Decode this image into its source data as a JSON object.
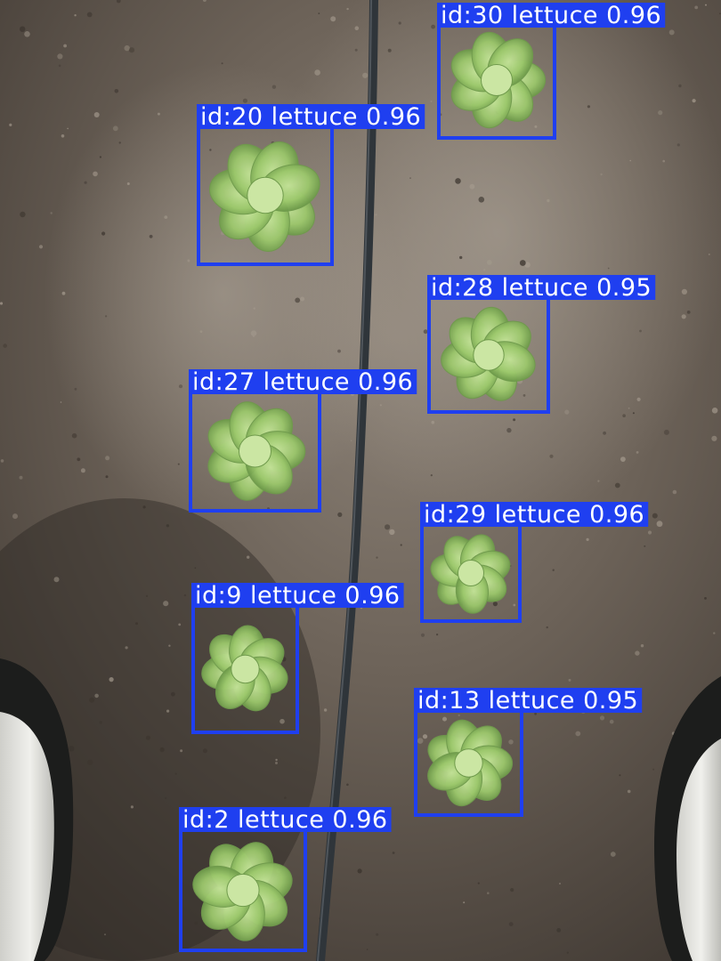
{
  "detections": [
    {
      "id_text": "id:30",
      "class_label": "lettuce",
      "score": "0.96",
      "label": "id:30 lettuce 0.96"
    },
    {
      "id_text": "id:20",
      "class_label": "lettuce",
      "score": "0.96",
      "label": "id:20 lettuce 0.96"
    },
    {
      "id_text": "id:28",
      "class_label": "lettuce",
      "score": "0.95",
      "label": "id:28 lettuce 0.95"
    },
    {
      "id_text": "id:27",
      "class_label": "lettuce",
      "score": "0.96",
      "label": "id:27 lettuce 0.96"
    },
    {
      "id_text": "id:29",
      "class_label": "lettuce",
      "score": "0.96",
      "label": "id:29 lettuce 0.96"
    },
    {
      "id_text": "id:9",
      "class_label": "lettuce",
      "score": "0.96",
      "label": "id:9 lettuce 0.96"
    },
    {
      "id_text": "id:13",
      "class_label": "lettuce",
      "score": "0.95",
      "label": "id:13 lettuce 0.95"
    },
    {
      "id_text": "id:2",
      "class_label": "lettuce",
      "score": "0.96",
      "label": "id:2 lettuce 0.96"
    }
  ],
  "colors": {
    "box": "#1f3ff0",
    "label_text": "#ffffff",
    "lettuce": "#a9d27a",
    "lettuce_dark": "#6f9a4c",
    "soil": "#5a5046",
    "soil_light": "#948a7e",
    "drip_line": "#2f353a",
    "tire": "#e6e6e2"
  }
}
